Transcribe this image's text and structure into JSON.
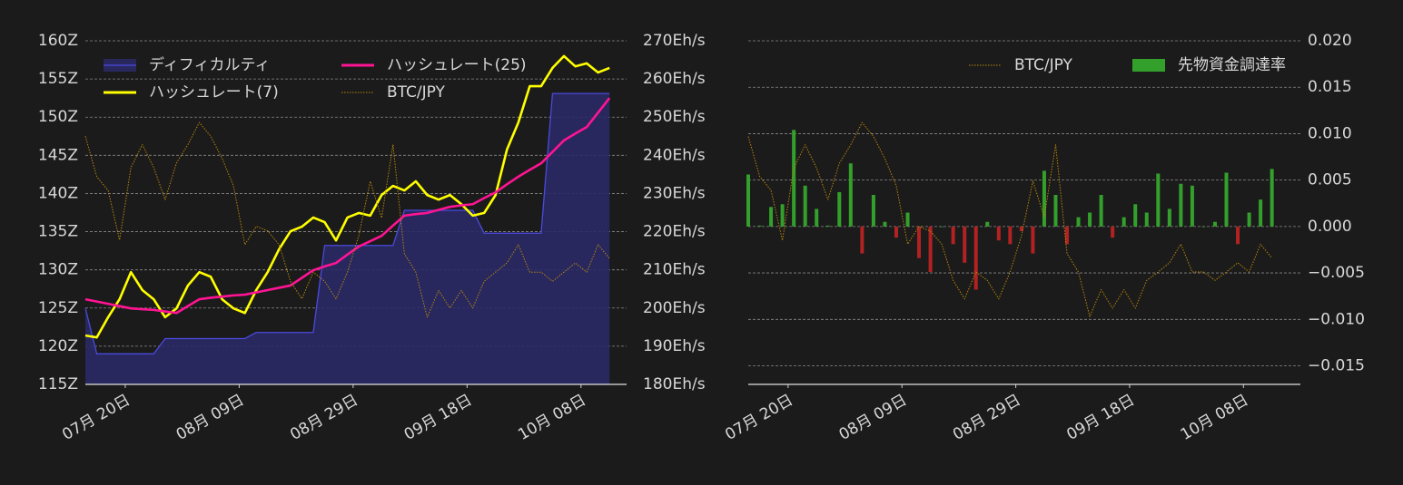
{
  "chart_data": [
    {
      "type": "line",
      "legend": "upper left",
      "legend_columns": 2,
      "grid": true,
      "xlim": [
        "07-13",
        "10-16"
      ],
      "xticks": [
        {
          "value": "07-20",
          "label": "07月 20日"
        },
        {
          "value": "08-09",
          "label": "08月 09日"
        },
        {
          "value": "08-29",
          "label": "08月 29日"
        },
        {
          "value": "09-18",
          "label": "09月 18日"
        },
        {
          "value": "10-08",
          "label": "10月 08日"
        }
      ],
      "ylim": [
        115,
        160
      ],
      "yticks": [
        {
          "value": 160,
          "label": "160Z"
        },
        {
          "value": 155,
          "label": "155Z"
        },
        {
          "value": 150,
          "label": "150Z"
        },
        {
          "value": 145,
          "label": "145Z"
        },
        {
          "value": 140,
          "label": "140Z"
        },
        {
          "value": 135,
          "label": "135Z"
        },
        {
          "value": 130,
          "label": "130Z"
        },
        {
          "value": 125,
          "label": "125Z"
        },
        {
          "value": 120,
          "label": "120Z"
        },
        {
          "value": 115,
          "label": "115Z"
        }
      ],
      "y2lim": [
        180,
        270
      ],
      "y2ticks": [
        {
          "value": 270,
          "label": "270Eh/s"
        },
        {
          "value": 260,
          "label": "260Eh/s"
        },
        {
          "value": 250,
          "label": "250Eh/s"
        },
        {
          "value": 240,
          "label": "240Eh/s"
        },
        {
          "value": 230,
          "label": "230Eh/s"
        },
        {
          "value": 220,
          "label": "220Eh/s"
        },
        {
          "value": 210,
          "label": "210Eh/s"
        },
        {
          "value": 200,
          "label": "200Eh/s"
        },
        {
          "value": 190,
          "label": "190Eh/s"
        },
        {
          "value": 180,
          "label": "180Eh/s"
        }
      ],
      "x": [
        "07-13",
        "07-15",
        "07-17",
        "07-19",
        "07-21",
        "07-23",
        "07-25",
        "07-27",
        "07-29",
        "07-31",
        "08-02",
        "08-04",
        "08-06",
        "08-08",
        "08-10",
        "08-12",
        "08-14",
        "08-16",
        "08-18",
        "08-20",
        "08-22",
        "08-24",
        "08-26",
        "08-28",
        "08-30",
        "09-01",
        "09-03",
        "09-05",
        "09-07",
        "09-09",
        "09-11",
        "09-13",
        "09-15",
        "09-17",
        "09-19",
        "09-21",
        "09-23",
        "09-25",
        "09-27",
        "09-29",
        "10-01",
        "10-03",
        "10-05",
        "10-07",
        "10-09",
        "10-11",
        "10-13"
      ],
      "series": [
        {
          "name": "ディフィカルティ",
          "type": "area",
          "color": "#4a4ae0",
          "fill": "#2a2a66",
          "axis": "y",
          "values": [
            125,
            119,
            119,
            119,
            119,
            119,
            119,
            121,
            121,
            121,
            121,
            121,
            121,
            121,
            121,
            121.8,
            121.8,
            121.8,
            121.8,
            121.8,
            121.8,
            133.2,
            133.2,
            133.2,
            133.2,
            133.2,
            133.2,
            133.2,
            137.8,
            137.8,
            137.8,
            137.8,
            137.8,
            137.8,
            137.8,
            134.8,
            134.8,
            134.8,
            134.8,
            134.8,
            134.8,
            153.1,
            153.1,
            153.1,
            153.1,
            153.1,
            153.1
          ]
        },
        {
          "name": "ハッシュレート(7)",
          "type": "line",
          "color": "#ffff00",
          "axis": "y2",
          "values": [
            192.8,
            192.3,
            197.6,
            202.3,
            209.4,
            204.7,
            202.3,
            197.6,
            199.9,
            205.9,
            209.4,
            208.2,
            202.3,
            199.9,
            198.7,
            204.7,
            209.4,
            215.4,
            220.1,
            221.3,
            223.7,
            222.5,
            217.7,
            223.7,
            224.9,
            224.2,
            229.6,
            232.0,
            230.8,
            233.2,
            229.6,
            228.4,
            229.6,
            227.2,
            224.2,
            224.9,
            229.6,
            241.5,
            248.6,
            258.1,
            258.1,
            262.9,
            266.0,
            263.3,
            264.1,
            261.7,
            262.9
          ]
        },
        {
          "name": "ハッシュレート(25)",
          "type": "line",
          "color": "#ff1493",
          "axis": "y2",
          "values": [
            202.3,
            201.7,
            201.1,
            200.5,
            199.9,
            199.7,
            199.5,
            199.1,
            198.7,
            200.5,
            202.3,
            202.7,
            203.0,
            203.3,
            203.5,
            204.1,
            204.7,
            205.3,
            205.9,
            207.9,
            209.9,
            210.9,
            211.8,
            214.0,
            216.1,
            217.5,
            218.9,
            221.6,
            224.2,
            224.6,
            224.9,
            225.7,
            226.5,
            226.9,
            227.2,
            228.8,
            230.3,
            232.4,
            234.4,
            236.2,
            237.9,
            240.9,
            243.9,
            245.7,
            247.4,
            251.2,
            255.0
          ]
        },
        {
          "name": "BTC/JPY",
          "type": "line",
          "color": "#b8860b",
          "linestyle": "dotted",
          "axis": "y",
          "values": [
            147.5,
            142.2,
            140.4,
            133.9,
            143.4,
            146.4,
            143.4,
            139.2,
            144.0,
            146.4,
            149.3,
            147.5,
            144.6,
            141.0,
            133.3,
            135.7,
            135.1,
            133.3,
            128.5,
            126.2,
            129.7,
            128.5,
            126.2,
            129.7,
            134.5,
            141.6,
            136.8,
            146.4,
            132.1,
            129.7,
            123.8,
            127.3,
            125.0,
            127.3,
            125.0,
            128.5,
            129.7,
            130.9,
            133.3,
            129.7,
            129.7,
            128.5,
            129.7,
            130.9,
            129.7,
            133.3,
            131.5
          ]
        }
      ]
    },
    {
      "type": "bar",
      "legend": "upper right",
      "legend_columns": 2,
      "grid": true,
      "xlim": [
        "07-13",
        "10-18"
      ],
      "xticks": [
        {
          "value": "07-20",
          "label": "07月 20日"
        },
        {
          "value": "08-09",
          "label": "08月 09日"
        },
        {
          "value": "08-29",
          "label": "08月 29日"
        },
        {
          "value": "09-18",
          "label": "09月 18日"
        },
        {
          "value": "10-08",
          "label": "10月 08日"
        }
      ],
      "ylim": [
        -0.017,
        0.02
      ],
      "yticks": [
        {
          "value": 0.02,
          "label": "0.020"
        },
        {
          "value": 0.015,
          "label": "0.015"
        },
        {
          "value": 0.01,
          "label": "0.010"
        },
        {
          "value": 0.005,
          "label": "0.005"
        },
        {
          "value": 0,
          "label": "0.000"
        },
        {
          "value": -0.005,
          "label": "−0.005"
        },
        {
          "value": -0.01,
          "label": "−0.010"
        },
        {
          "value": -0.015,
          "label": "−0.015"
        }
      ],
      "x": [
        "07-13",
        "07-15",
        "07-17",
        "07-19",
        "07-21",
        "07-23",
        "07-25",
        "07-27",
        "07-29",
        "07-31",
        "08-02",
        "08-04",
        "08-06",
        "08-08",
        "08-10",
        "08-12",
        "08-14",
        "08-16",
        "08-18",
        "08-20",
        "08-22",
        "08-24",
        "08-26",
        "08-28",
        "08-30",
        "09-01",
        "09-03",
        "09-05",
        "09-07",
        "09-09",
        "09-11",
        "09-13",
        "09-15",
        "09-17",
        "09-19",
        "09-21",
        "09-23",
        "09-25",
        "09-27",
        "09-29",
        "10-01",
        "10-03",
        "10-05",
        "10-07",
        "10-09",
        "10-11",
        "10-13"
      ],
      "series": [
        {
          "name": "BTC/JPY",
          "type": "line",
          "color": "#b8860b",
          "linestyle": "dotted",
          "values": [
            0.0097,
            0.0054,
            0.0039,
            -0.0015,
            0.0063,
            0.0088,
            0.0063,
            0.0029,
            0.0068,
            0.0088,
            0.0112,
            0.0097,
            0.0073,
            0.0044,
            -0.0019,
            0.0,
            -0.0005,
            -0.0019,
            -0.0058,
            -0.0078,
            -0.0049,
            -0.0058,
            -0.0078,
            -0.0049,
            -0.001,
            0.0049,
            0.001,
            0.0088,
            -0.0029,
            -0.0049,
            -0.0097,
            -0.0068,
            -0.0088,
            -0.0068,
            -0.0088,
            -0.0058,
            -0.0049,
            -0.0039,
            -0.0019,
            -0.0049,
            -0.0049,
            -0.0058,
            -0.0049,
            -0.0039,
            -0.0049,
            -0.0019,
            -0.0034
          ]
        },
        {
          "name": "先物資金調達率",
          "type": "bar",
          "color": "#34a02c",
          "negative_color": "#b22222",
          "values": [
            0.0056,
            0.0001,
            0.0021,
            0.0024,
            0.0104,
            0.0044,
            0.0019,
            0.0001,
            0.0037,
            0.0068,
            -0.0029,
            0.0034,
            0.0005,
            -0.0012,
            0.0015,
            -0.0034,
            -0.0049,
            0.0,
            -0.0019,
            -0.0039,
            -0.0068,
            0.0005,
            -0.0015,
            -0.0019,
            -0.0005,
            -0.0029,
            0.006,
            0.0034,
            -0.0019,
            0.001,
            0.0015,
            0.0034,
            -0.0012,
            0.001,
            0.0024,
            0.0015,
            0.0057,
            0.0019,
            0.0046,
            0.0044,
            0.0,
            0.0005,
            0.0058,
            -0.0019,
            0.0015,
            0.0029,
            0.0062
          ]
        }
      ]
    }
  ]
}
